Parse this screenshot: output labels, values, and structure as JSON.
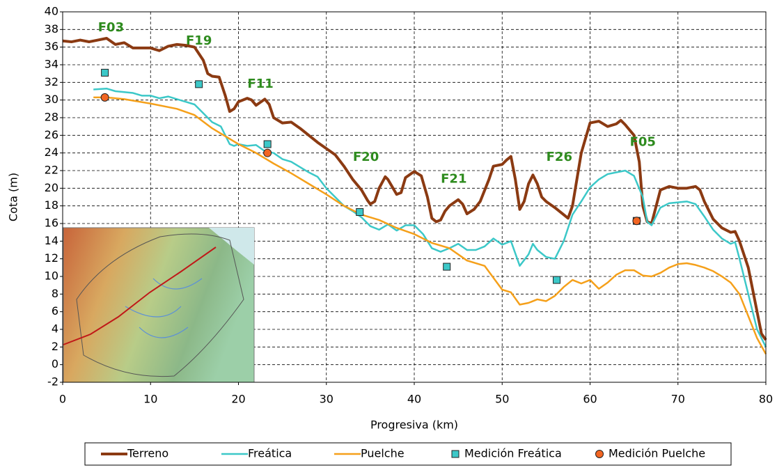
{
  "chart_data": {
    "type": "line",
    "xlabel": "Progresiva (km)",
    "ylabel": "Cota (m)",
    "xlim": [
      0,
      80
    ],
    "ylim": [
      -2,
      40
    ],
    "xticks": [
      0,
      10,
      20,
      30,
      40,
      50,
      60,
      70,
      80
    ],
    "yticks": [
      -2,
      0,
      2,
      4,
      6,
      8,
      10,
      12,
      14,
      16,
      18,
      20,
      22,
      24,
      26,
      28,
      30,
      32,
      34,
      36,
      38,
      40
    ],
    "grid": true,
    "legend": "bottom",
    "series": [
      {
        "name": "Terreno",
        "color": "#8b3a12",
        "type": "line",
        "x": [
          0,
          1,
          2,
          3,
          4,
          5,
          6,
          7,
          8,
          9,
          10,
          11,
          12,
          13,
          14,
          15,
          16,
          16.5,
          17,
          17.8,
          18.5,
          19,
          19.5,
          20,
          21,
          21.5,
          22,
          23,
          23.5,
          24,
          25,
          26,
          27,
          28,
          29,
          30,
          31,
          32,
          33,
          34,
          34.7,
          35,
          35.5,
          36,
          36.7,
          37,
          38,
          38.5,
          39,
          40,
          40.8,
          41.5,
          42,
          42.5,
          43,
          43.5,
          44,
          45,
          45.5,
          46,
          46.8,
          47.5,
          48.5,
          49,
          50,
          50.5,
          51,
          51.5,
          52,
          52.5,
          53,
          53.5,
          54,
          54.5,
          55,
          56,
          57,
          57.5,
          58,
          59,
          60,
          61,
          62,
          63,
          63.5,
          64,
          65,
          65.6,
          66,
          66.5,
          67,
          68,
          69,
          70,
          71,
          72,
          72.5,
          73,
          74,
          75,
          76,
          76.5,
          77,
          78,
          79,
          79.5,
          80
        ],
        "values": [
          36.7,
          36.6,
          36.8,
          36.6,
          36.8,
          37.0,
          36.3,
          36.5,
          35.9,
          35.9,
          35.9,
          35.6,
          36.1,
          36.3,
          36.2,
          36.0,
          34.5,
          33.0,
          32.7,
          32.6,
          30.5,
          28.7,
          29.0,
          29.8,
          30.2,
          30.0,
          29.4,
          30.1,
          29.5,
          28.0,
          27.4,
          27.5,
          26.8,
          26.0,
          25.2,
          24.5,
          23.8,
          22.5,
          21.0,
          19.8,
          18.6,
          18.2,
          18.5,
          20.0,
          21.3,
          21.0,
          19.3,
          19.5,
          21.2,
          21.9,
          21.4,
          19.0,
          16.6,
          16.2,
          16.4,
          17.4,
          18.0,
          18.7,
          18.2,
          17.1,
          17.6,
          18.5,
          21.0,
          22.5,
          22.7,
          23.2,
          23.6,
          21.0,
          17.6,
          18.5,
          20.5,
          21.5,
          20.5,
          19.0,
          18.5,
          17.8,
          17.0,
          16.6,
          18.0,
          24.0,
          27.4,
          27.6,
          27.0,
          27.3,
          27.7,
          27.2,
          26.0,
          23.0,
          18.0,
          16.2,
          16.0,
          19.8,
          20.2,
          20.0,
          20.0,
          20.2,
          19.8,
          18.5,
          16.5,
          15.5,
          15.0,
          15.1,
          14.0,
          11.0,
          6.0,
          3.5,
          2.8
        ]
      },
      {
        "name": "Freática",
        "color": "#3cc8c8",
        "type": "line",
        "x": [
          3.5,
          5,
          6,
          7,
          8,
          9,
          10,
          11,
          12,
          13,
          14,
          15,
          16,
          17,
          18,
          19,
          19.5,
          20,
          21,
          22,
          23,
          24,
          25,
          26,
          27,
          28,
          29,
          30,
          31,
          32,
          33,
          34,
          35,
          36,
          37,
          38,
          39,
          40,
          41,
          42,
          43,
          44,
          45,
          46,
          47,
          48,
          49,
          50,
          51,
          52,
          53,
          53.5,
          54,
          55,
          56,
          57,
          58,
          59,
          60,
          61,
          62,
          63,
          64,
          65,
          66,
          66.5,
          67,
          68,
          69,
          70,
          71,
          72,
          73,
          74,
          75,
          76,
          76.5,
          77,
          78,
          79,
          80
        ],
        "values": [
          31.2,
          31.3,
          31.0,
          30.9,
          30.8,
          30.5,
          30.5,
          30.2,
          30.4,
          30.1,
          29.8,
          29.5,
          28.5,
          27.5,
          27.0,
          25.0,
          24.8,
          25.0,
          24.8,
          24.9,
          24.2,
          24.0,
          23.3,
          23.0,
          22.4,
          21.8,
          21.3,
          20.0,
          19.0,
          18.0,
          17.4,
          16.7,
          15.7,
          15.3,
          15.9,
          15.2,
          15.8,
          15.8,
          14.8,
          13.2,
          12.8,
          13.2,
          13.7,
          13.0,
          13.0,
          13.4,
          14.3,
          13.6,
          14.0,
          11.2,
          12.5,
          13.7,
          13.0,
          12.2,
          12.0,
          14.0,
          17.0,
          18.5,
          20.1,
          21.0,
          21.6,
          21.8,
          22.0,
          21.4,
          19.0,
          16.2,
          15.8,
          17.8,
          18.3,
          18.4,
          18.5,
          18.2,
          16.8,
          15.3,
          14.3,
          13.7,
          13.9,
          12.0,
          8.0,
          4.0,
          2.0
        ]
      },
      {
        "name": "Puelche",
        "color": "#f5a01a",
        "type": "line",
        "x": [
          3.5,
          5,
          7,
          10,
          13,
          15,
          17,
          20,
          22,
          24,
          26,
          28,
          30,
          32,
          34,
          36,
          38,
          40,
          42,
          44,
          46,
          48,
          50,
          51,
          52,
          53,
          54,
          55,
          56,
          57,
          58,
          59,
          60,
          61,
          62,
          63,
          64,
          65,
          66,
          67,
          68,
          69,
          70,
          71,
          72,
          73,
          74,
          75,
          76,
          77,
          78,
          79,
          80
        ],
        "values": [
          30.3,
          30.3,
          30.1,
          29.6,
          29.0,
          28.3,
          26.8,
          25.0,
          24.0,
          22.8,
          21.7,
          20.5,
          19.3,
          18.0,
          17.0,
          16.4,
          15.5,
          14.8,
          13.8,
          13.2,
          11.8,
          11.2,
          8.5,
          8.2,
          6.8,
          7.0,
          7.4,
          7.2,
          7.8,
          8.8,
          9.6,
          9.2,
          9.6,
          8.6,
          9.3,
          10.2,
          10.7,
          10.7,
          10.1,
          10.0,
          10.4,
          11.0,
          11.4,
          11.5,
          11.3,
          11.0,
          10.6,
          10.0,
          9.3,
          8.0,
          5.5,
          3.0,
          1.2
        ]
      },
      {
        "name": "Medición Freática",
        "color": "#3cc8c8",
        "type": "scatter",
        "marker": "square",
        "x": [
          4.8,
          15.5,
          23.3,
          33.8,
          43.7,
          56.2,
          65.3
        ],
        "values": [
          33.1,
          31.8,
          25.0,
          17.3,
          11.1,
          9.6,
          16.3
        ]
      },
      {
        "name": "Medición Puelche",
        "color": "#f26522",
        "type": "scatter",
        "marker": "circle",
        "x": [
          4.8,
          23.3,
          65.3
        ],
        "values": [
          30.3,
          24.0,
          16.3
        ]
      }
    ],
    "annotations": [
      {
        "text": "F03",
        "x": 5.5,
        "y": 38.2
      },
      {
        "text": "F19",
        "x": 15.5,
        "y": 36.7
      },
      {
        "text": "F11",
        "x": 22.5,
        "y": 31.8
      },
      {
        "text": "F20",
        "x": 34.5,
        "y": 23.5
      },
      {
        "text": "F21",
        "x": 44.5,
        "y": 21
      },
      {
        "text": "F26",
        "x": 56.5,
        "y": 23.5
      },
      {
        "text": "F05",
        "x": 66,
        "y": 25.2
      }
    ]
  }
}
